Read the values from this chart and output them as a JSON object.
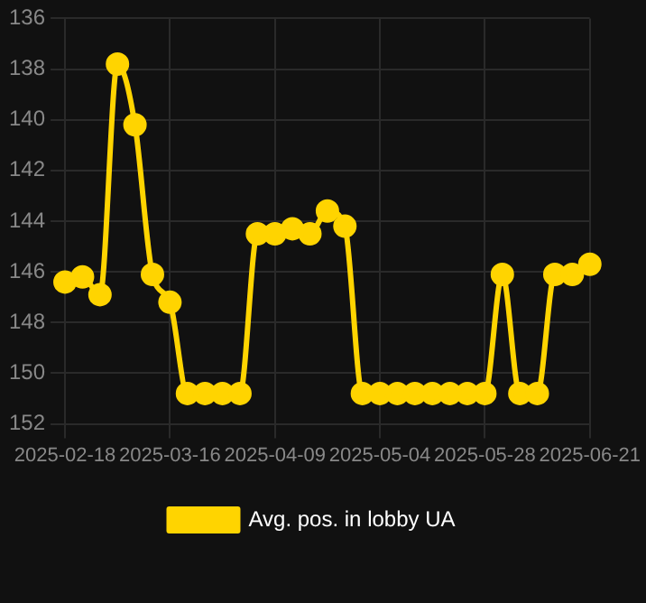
{
  "chart_data": {
    "type": "line",
    "categories": [
      "2025-02-18",
      null,
      null,
      null,
      null,
      null,
      "2025-03-16",
      null,
      null,
      null,
      null,
      null,
      "2025-04-09",
      null,
      null,
      null,
      null,
      null,
      "2025-05-04",
      null,
      null,
      null,
      null,
      null,
      "2025-05-28",
      null,
      null,
      null,
      null,
      null,
      "2025-06-21"
    ],
    "series": [
      {
        "name": "Avg. pos. in lobby UA",
        "color": "#ffd400",
        "values": [
          146.4,
          146.2,
          146.9,
          137.8,
          140.2,
          146.1,
          147.2,
          150.8,
          150.8,
          150.8,
          150.8,
          144.5,
          144.5,
          144.3,
          144.5,
          143.6,
          144.2,
          150.8,
          150.8,
          150.8,
          150.8,
          150.8,
          150.8,
          150.8,
          150.8,
          146.1,
          150.8,
          150.8,
          146.1,
          146.1,
          145.7
        ]
      }
    ],
    "ylim": [
      152,
      136
    ],
    "yticks": [
      136,
      138,
      140,
      142,
      144,
      146,
      148,
      150,
      152
    ],
    "grid": true,
    "legend": "bottom",
    "marker": "circle",
    "line_style": "solid"
  }
}
